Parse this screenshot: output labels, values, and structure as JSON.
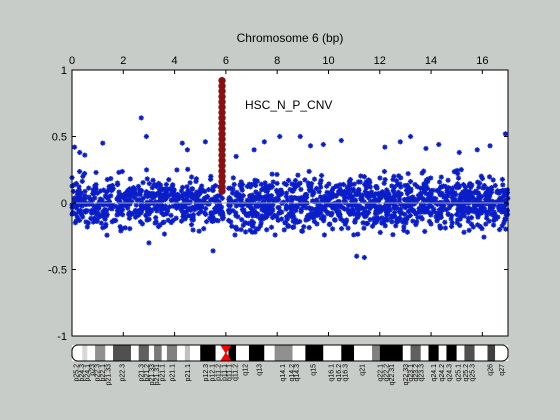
{
  "figure": {
    "background_color": "#c8ccc8"
  },
  "chart_data": {
    "type": "scatter",
    "title": "Chromosome 6 (bp)",
    "annotation": "HSC_N_P_CNV",
    "x_axis": {
      "position": "top",
      "range": [
        0,
        17
      ],
      "ticks": [
        0,
        2,
        4,
        6,
        8,
        10,
        12,
        14,
        16
      ],
      "tick_labels": [
        "0",
        "2",
        "4",
        "6",
        "8",
        "10",
        "12",
        "14",
        "16"
      ]
    },
    "y_axis": {
      "range": [
        -1,
        1
      ],
      "ticks": [
        1,
        0.5,
        0,
        -0.5,
        -1
      ],
      "tick_labels": [
        "1",
        "0.5",
        "0",
        "-0.5",
        "-1"
      ]
    },
    "grid": false,
    "zero_line": {
      "y": 0,
      "color": "#a8a8a8"
    },
    "series": [
      {
        "color": "#0a1ec8",
        "marker": "asterisk",
        "band": {
          "lower": -0.28,
          "upper": 0.28
        },
        "sparse_gap_x": [
          5.9,
          6.1
        ],
        "outliers": [
          [
            0.1,
            0.42
          ],
          [
            0.5,
            0.36
          ],
          [
            1.2,
            0.45
          ],
          [
            2.7,
            0.64
          ],
          [
            2.9,
            0.5
          ],
          [
            3.0,
            -0.3
          ],
          [
            4.3,
            0.45
          ],
          [
            4.5,
            0.4
          ],
          [
            5.2,
            0.46
          ],
          [
            6.4,
            0.35
          ],
          [
            7.1,
            0.4
          ],
          [
            8.1,
            0.5
          ],
          [
            8.9,
            0.5
          ],
          [
            9.8,
            0.44
          ],
          [
            10.5,
            0.47
          ],
          [
            11.1,
            -0.4
          ],
          [
            11.4,
            -0.41
          ],
          [
            12.2,
            0.42
          ],
          [
            12.8,
            0.46
          ],
          [
            13.2,
            0.5
          ],
          [
            14.3,
            0.44
          ],
          [
            15.1,
            0.38
          ],
          [
            16.3,
            0.43
          ],
          [
            16.9,
            0.52
          ],
          [
            7.5,
            0.46
          ],
          [
            9.3,
            0.43
          ],
          [
            13.8,
            0.41
          ],
          [
            5.5,
            -0.36
          ],
          [
            0.3,
            0.38
          ],
          [
            15.8,
            0.4
          ]
        ]
      },
      {
        "color": "#8b1010",
        "marker": "filled-circle",
        "x": 5.85,
        "y_values": [
          0.92,
          0.88,
          0.84,
          0.8,
          0.76,
          0.72,
          0.68,
          0.64,
          0.6,
          0.56,
          0.52,
          0.48,
          0.44,
          0.4,
          0.36,
          0.32,
          0.28,
          0.24,
          0.2,
          0.16,
          0.12,
          0.09
        ]
      }
    ],
    "ideogram": {
      "centromere_x": 6.0,
      "bands": [
        {
          "start": 0.0,
          "end": 0.4,
          "shade": "#ffffff"
        },
        {
          "start": 0.4,
          "end": 0.6,
          "shade": "#d8d8d8"
        },
        {
          "start": 0.6,
          "end": 0.9,
          "shade": "#ffffff"
        },
        {
          "start": 0.9,
          "end": 1.3,
          "shade": "#909090"
        },
        {
          "start": 1.3,
          "end": 1.6,
          "shade": "#ffffff"
        },
        {
          "start": 1.6,
          "end": 2.3,
          "shade": "#505050"
        },
        {
          "start": 2.3,
          "end": 2.6,
          "shade": "#ffffff"
        },
        {
          "start": 2.6,
          "end": 3.0,
          "shade": "#606060"
        },
        {
          "start": 3.0,
          "end": 3.2,
          "shade": "#ffffff"
        },
        {
          "start": 3.2,
          "end": 3.5,
          "shade": "#7a7a7a"
        },
        {
          "start": 3.5,
          "end": 3.7,
          "shade": "#ffffff"
        },
        {
          "start": 3.7,
          "end": 4.1,
          "shade": "#808080"
        },
        {
          "start": 4.1,
          "end": 4.4,
          "shade": "#ffffff"
        },
        {
          "start": 4.4,
          "end": 4.6,
          "shade": "#c0c0c0"
        },
        {
          "start": 4.6,
          "end": 5.0,
          "shade": "#ffffff"
        },
        {
          "start": 5.0,
          "end": 5.6,
          "shade": "#000000"
        },
        {
          "start": 5.6,
          "end": 5.9,
          "shade": "#ffffff"
        },
        {
          "start": 6.1,
          "end": 6.4,
          "shade": "#000000"
        },
        {
          "start": 6.4,
          "end": 6.9,
          "shade": "#ffffff"
        },
        {
          "start": 6.9,
          "end": 7.5,
          "shade": "#000000"
        },
        {
          "start": 7.5,
          "end": 7.9,
          "shade": "#ffffff"
        },
        {
          "start": 7.9,
          "end": 8.6,
          "shade": "#909090"
        },
        {
          "start": 8.6,
          "end": 9.1,
          "shade": "#ffffff"
        },
        {
          "start": 9.1,
          "end": 9.8,
          "shade": "#000000"
        },
        {
          "start": 9.8,
          "end": 10.5,
          "shade": "#ffffff"
        },
        {
          "start": 10.5,
          "end": 11.0,
          "shade": "#000000"
        },
        {
          "start": 11.0,
          "end": 11.7,
          "shade": "#ffffff"
        },
        {
          "start": 11.7,
          "end": 12.0,
          "shade": "#808080"
        },
        {
          "start": 12.0,
          "end": 12.9,
          "shade": "#000000"
        },
        {
          "start": 12.9,
          "end": 13.2,
          "shade": "#ffffff"
        },
        {
          "start": 13.2,
          "end": 13.6,
          "shade": "#606060"
        },
        {
          "start": 13.6,
          "end": 13.9,
          "shade": "#ffffff"
        },
        {
          "start": 13.9,
          "end": 14.3,
          "shade": "#000000"
        },
        {
          "start": 14.3,
          "end": 14.6,
          "shade": "#ffffff"
        },
        {
          "start": 14.6,
          "end": 15.0,
          "shade": "#000000"
        },
        {
          "start": 15.0,
          "end": 15.3,
          "shade": "#ffffff"
        },
        {
          "start": 15.3,
          "end": 15.7,
          "shade": "#505050"
        },
        {
          "start": 15.7,
          "end": 16.2,
          "shade": "#ffffff"
        },
        {
          "start": 16.2,
          "end": 16.5,
          "shade": "#404040"
        },
        {
          "start": 16.5,
          "end": 17.0,
          "shade": "#ffffff"
        }
      ],
      "labels": [
        {
          "x": 0.15,
          "text": "p25.2"
        },
        {
          "x": 0.38,
          "text": "p24.3"
        },
        {
          "x": 0.58,
          "text": "p24.1"
        },
        {
          "x": 0.78,
          "text": "p23"
        },
        {
          "x": 0.98,
          "text": "p22.3"
        },
        {
          "x": 1.18,
          "text": "p22.1"
        },
        {
          "x": 1.4,
          "text": "p21.33"
        },
        {
          "x": 1.95,
          "text": "p22.3"
        },
        {
          "x": 2.7,
          "text": "p21.3"
        },
        {
          "x": 2.9,
          "text": "p21.2"
        },
        {
          "x": 3.1,
          "text": "p21.33"
        },
        {
          "x": 3.3,
          "text": "p21.31"
        },
        {
          "x": 3.5,
          "text": "p21.1"
        },
        {
          "x": 3.9,
          "text": "p21.1"
        },
        {
          "x": 4.5,
          "text": "p21.1"
        },
        {
          "x": 5.2,
          "text": "p12.3"
        },
        {
          "x": 5.45,
          "text": "p12.1"
        },
        {
          "x": 5.7,
          "text": "p11.2"
        },
        {
          "x": 5.92,
          "text": "p11.1"
        },
        {
          "x": 6.12,
          "text": "q11.1"
        },
        {
          "x": 6.35,
          "text": "q11.2"
        },
        {
          "x": 6.75,
          "text": "q12"
        },
        {
          "x": 7.3,
          "text": "q13"
        },
        {
          "x": 8.2,
          "text": "q14.1"
        },
        {
          "x": 8.55,
          "text": "q14.2"
        },
        {
          "x": 8.75,
          "text": "q14.3"
        },
        {
          "x": 9.4,
          "text": "q15"
        },
        {
          "x": 10.1,
          "text": "q16.1"
        },
        {
          "x": 10.4,
          "text": "q16.2"
        },
        {
          "x": 10.65,
          "text": "q16.3"
        },
        {
          "x": 11.3,
          "text": "q21"
        },
        {
          "x": 12.0,
          "text": "q22.1"
        },
        {
          "x": 12.25,
          "text": "q22.2"
        },
        {
          "x": 12.45,
          "text": "q22.31"
        },
        {
          "x": 13.0,
          "text": "q22.33"
        },
        {
          "x": 13.2,
          "text": "q23.1"
        },
        {
          "x": 13.4,
          "text": "q23.2"
        },
        {
          "x": 13.6,
          "text": "q23.3"
        },
        {
          "x": 14.1,
          "text": "q24.1"
        },
        {
          "x": 14.4,
          "text": "q24.2"
        },
        {
          "x": 14.7,
          "text": "q24.3"
        },
        {
          "x": 15.05,
          "text": "q25.1"
        },
        {
          "x": 15.35,
          "text": "q25.2"
        },
        {
          "x": 15.6,
          "text": "q25.3"
        },
        {
          "x": 16.3,
          "text": "q26"
        },
        {
          "x": 16.75,
          "text": "q27"
        }
      ]
    }
  }
}
